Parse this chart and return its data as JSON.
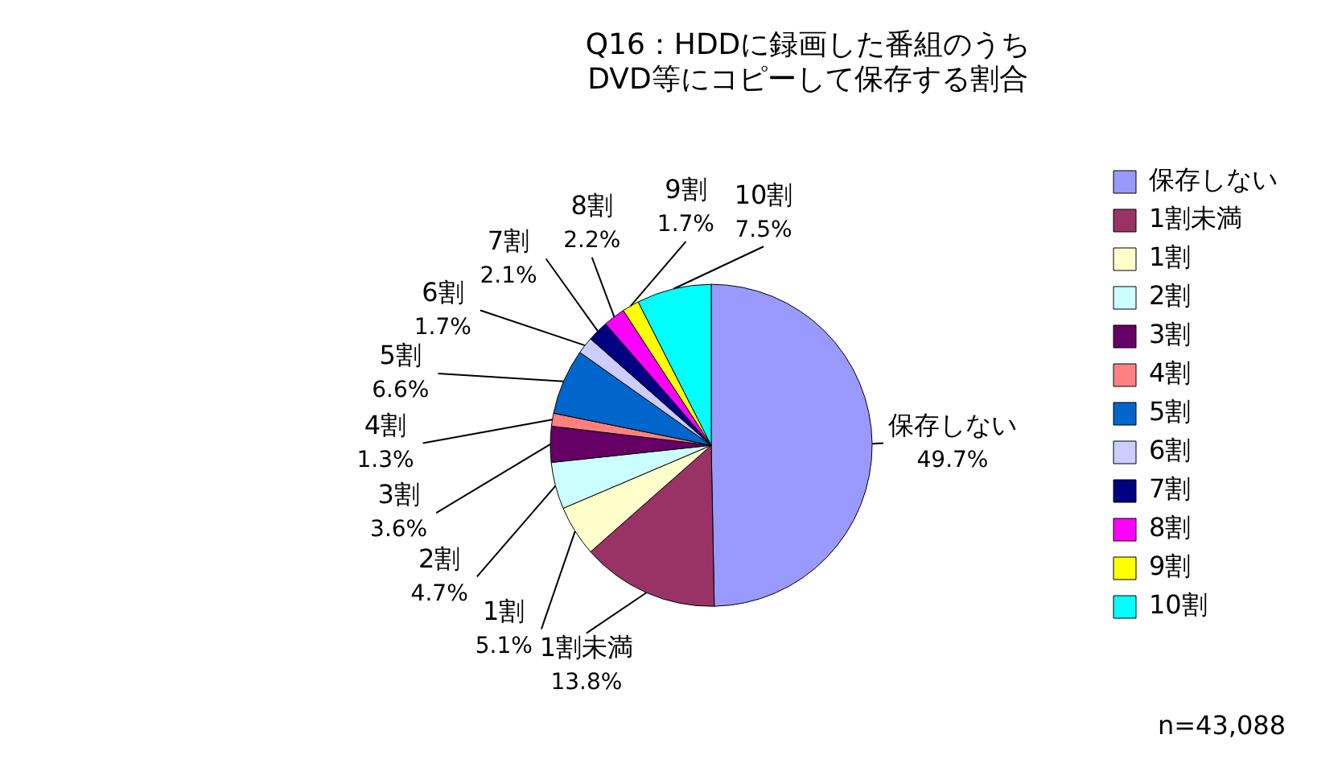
{
  "chart_data": {
    "type": "pie",
    "title": "Q16：HDDに録画した番組のうち\nDVD等にコピーして保存する割合",
    "categories": [
      "保存しない",
      "1割未満",
      "1割",
      "2割",
      "3割",
      "4割",
      "5割",
      "6割",
      "7割",
      "8割",
      "9割",
      "10割"
    ],
    "values": [
      49.7,
      13.8,
      5.1,
      4.7,
      3.6,
      1.3,
      6.6,
      1.7,
      2.1,
      2.2,
      1.7,
      7.5
    ],
    "value_labels": [
      "49.7%",
      "13.8%",
      "5.1%",
      "4.7%",
      "3.6%",
      "1.3%",
      "6.6%",
      "1.7%",
      "2.1%",
      "2.2%",
      "1.7%",
      "7.5%"
    ],
    "colors": [
      "#9999ff",
      "#993366",
      "#ffffcc",
      "#ccffff",
      "#660066",
      "#ff8080",
      "#0066cc",
      "#ccccff",
      "#000080",
      "#ff00ff",
      "#ffff00",
      "#00ffff"
    ],
    "legend": "right",
    "annotations": [
      "n=43,088"
    ]
  }
}
